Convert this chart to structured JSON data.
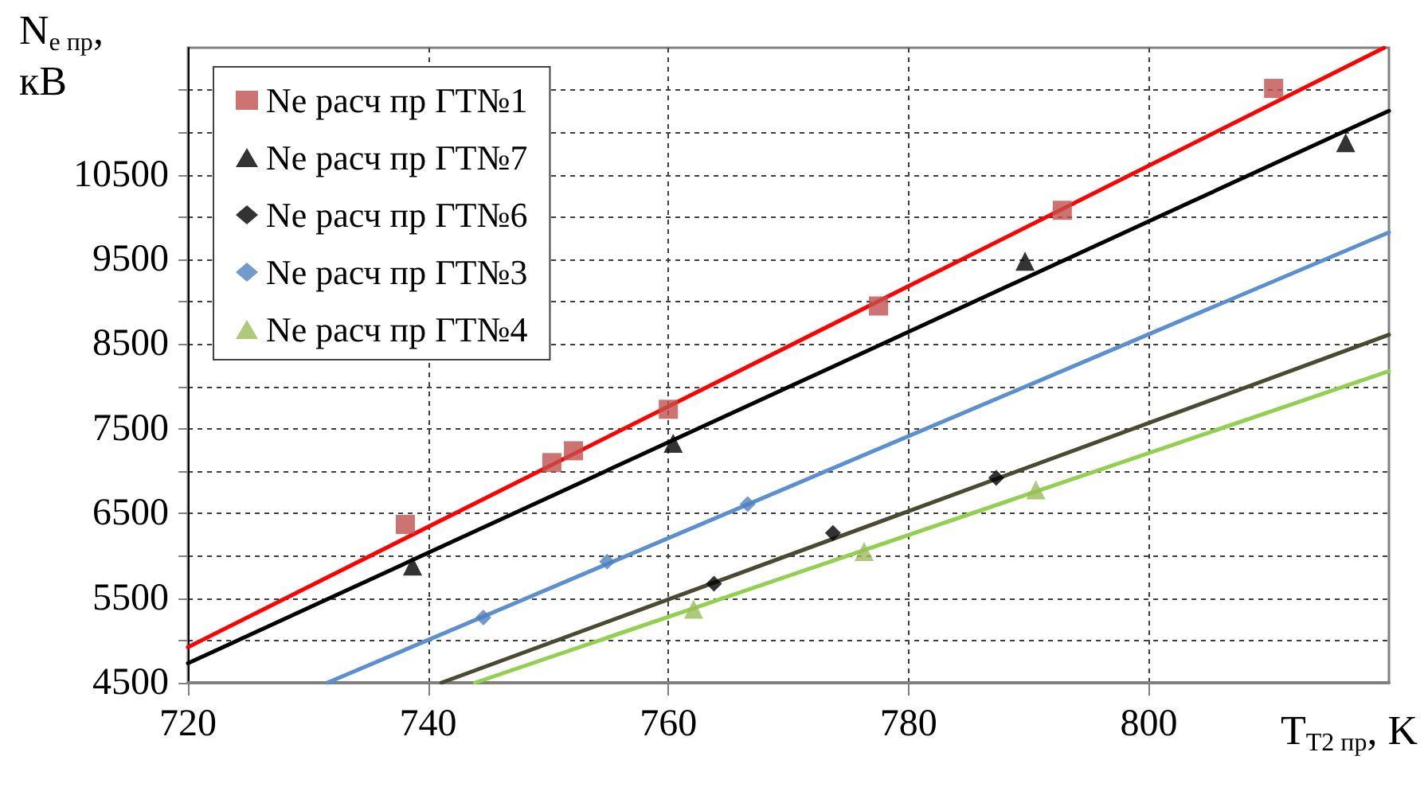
{
  "chart_data": {
    "type": "scatter",
    "xlabel": "T$_{T2 пр}$, K",
    "ylabel": "N$_{е пр}$, кВ",
    "xlim": [
      720,
      820
    ],
    "xticks": [
      720,
      740,
      760,
      780,
      800
    ],
    "ylim": [
      4500,
      12000
    ],
    "yticks": [
      4500,
      {
        "value": 5000,
        "label": null
      },
      5500,
      {
        "value": 6000,
        "label": null
      },
      6500,
      {
        "value": 7000,
        "label": null
      },
      7500,
      {
        "value": 8000,
        "label": null
      },
      8500,
      {
        "value": 9000,
        "label": null
      },
      9500,
      {
        "value": 10000,
        "label": null
      },
      10500,
      {
        "value": 11000,
        "label": null
      },
      {
        "value": 11500,
        "label": null
      }
    ],
    "grid": true,
    "legend": "top left",
    "series": [
      {
        "name": "Ne расч пр ГТ№1",
        "color": "#c0504d",
        "marker": "square",
        "x": [
          738.1,
          750.3,
          752.1,
          760.0,
          777.5,
          792.8,
          810.4
        ],
        "values": [
          6370,
          7100,
          7240,
          7730,
          8950,
          10080,
          11520
        ]
      },
      {
        "name": "Ne расч пр ГТ№7",
        "color": "#000000",
        "marker": "triangle",
        "x": [
          738.7,
          760.4,
          789.7,
          816.4
        ],
        "values": [
          5880,
          7330,
          9480,
          10880
        ]
      },
      {
        "name": "Ne расч пр ГТ№6",
        "color": "#000000",
        "marker": "diamond",
        "x": [
          763.8,
          773.7,
          787.3
        ],
        "values": [
          5670,
          6270,
          6920
        ]
      },
      {
        "name": "Ne расч пр ГТ№3",
        "color": "#4f81bd",
        "marker": "diamond",
        "x": [
          744.6,
          754.9,
          766.6
        ],
        "values": [
          5270,
          5930,
          6610
        ]
      },
      {
        "name": "Ne расч пр ГТ№4",
        "color": "#9bbb59",
        "marker": "triangle",
        "x": [
          762.1,
          776.3,
          790.6
        ],
        "values": [
          5370,
          6050,
          6780
        ]
      },
      {
        "type": "line",
        "color": "#ff0000",
        "marker": "none",
        "x": [
          720,
          819.6
        ],
        "values": [
          4920,
          12000
        ]
      },
      {
        "type": "line",
        "color": "#000000",
        "marker": "none",
        "x": [
          720,
          820
        ],
        "values": [
          4730,
          11255
        ]
      },
      {
        "type": "line",
        "color": "#5b8fd0",
        "marker": "none",
        "x": [
          731.6,
          820
        ],
        "values": [
          4500,
          9820
        ]
      },
      {
        "type": "line",
        "color": "#4a4a32",
        "marker": "none",
        "x": [
          741.1,
          820
        ],
        "values": [
          4500,
          8610
        ]
      },
      {
        "type": "line",
        "color": "#92d050",
        "marker": "none",
        "x": [
          743.9,
          820
        ],
        "values": [
          4500,
          8180
        ]
      }
    ]
  }
}
